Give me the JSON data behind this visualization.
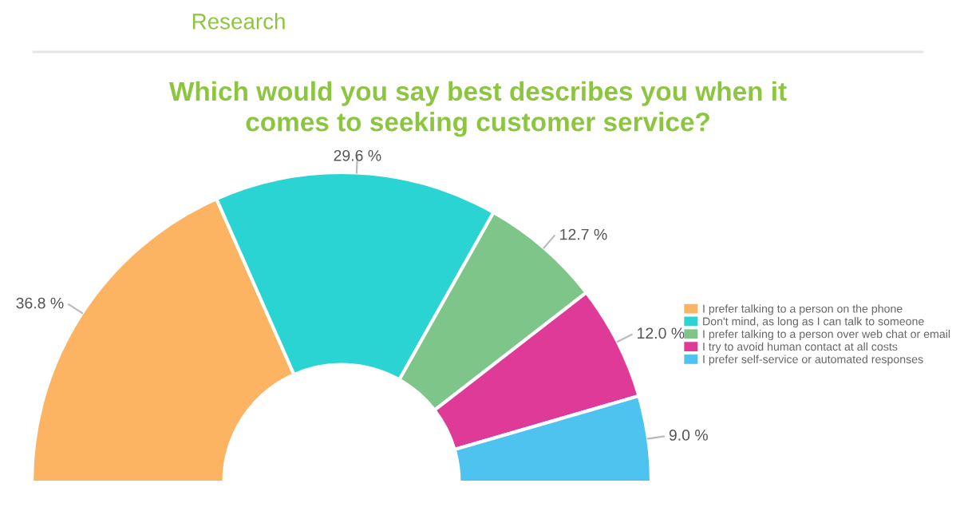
{
  "chart_data": {
    "type": "donut",
    "title": "Which would you say best describes you when it\ncomes to seeking customer service?",
    "annotations": [
      "Research"
    ],
    "categories": [
      "I prefer talking to a person on the phone",
      "Don't mind, as long as I can talk to someone",
      "I prefer talking to a person over web chat or email",
      "I try to avoid human contact at all costs",
      "I prefer self-service or automated responses"
    ],
    "values": [
      36.8,
      29.6,
      12.7,
      12.0,
      9.0
    ],
    "value_labels": [
      "36.8 %",
      "29.6 %",
      "12.7 %",
      "12.0 %",
      "9.0 %"
    ],
    "colors": [
      "#fdb462",
      "#2ad4d2",
      "#7ec58a",
      "#df3a98",
      "#4fc3ef"
    ],
    "legend": "right"
  }
}
